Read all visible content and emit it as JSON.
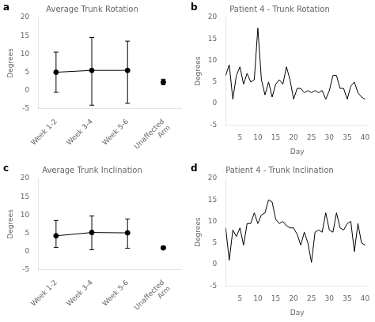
{
  "chart_data": [
    {
      "type": "errorbar",
      "title": "Average Trunk Rotation",
      "annotations": [
        "a"
      ],
      "categories": [
        "Week 1-2",
        "Week 3-4",
        "Week 5-6",
        "Unaffected\nArm"
      ],
      "series": [
        {
          "type": "line",
          "line_style": "solid",
          "color": "#000000",
          "values": [
            5.0,
            5.5,
            5.5,
            null
          ]
        },
        {
          "type": "scatter",
          "marker": "circle",
          "color": "#000000",
          "values": [
            5.0,
            5.5,
            5.5,
            2.3
          ],
          "errors_upper": [
            5.5,
            9.0,
            8.0,
            0.8
          ],
          "errors_lower": [
            5.5,
            9.5,
            9.0,
            0.7
          ]
        }
      ],
      "ylabel": "Degrees",
      "ylim": [
        -5,
        20
      ],
      "yticks": [
        -5,
        0,
        5,
        10,
        15,
        20
      ],
      "grid": false
    },
    {
      "type": "line",
      "title": "Patient 4 - Trunk Rotation",
      "annotations": [
        "b"
      ],
      "x": [
        1,
        2,
        3,
        4,
        5,
        6,
        7,
        8,
        9,
        10,
        11,
        12,
        13,
        14,
        15,
        16,
        17,
        18,
        19,
        20,
        21,
        22,
        23,
        24,
        25,
        26,
        27,
        28,
        29,
        30,
        31,
        32,
        33,
        34,
        35,
        36,
        37,
        38,
        39,
        40
      ],
      "series": [
        {
          "line_style": "solid",
          "color": "#000000",
          "values": [
            6.5,
            9.0,
            1.0,
            6.5,
            8.5,
            4.5,
            7.0,
            5.0,
            5.5,
            17.5,
            5.5,
            2.0,
            5.0,
            1.5,
            4.5,
            5.5,
            4.5,
            8.5,
            5.5,
            1.0,
            3.5,
            3.5,
            2.5,
            3.0,
            2.5,
            3.0,
            2.5,
            3.0,
            1.0,
            3.0,
            6.5,
            6.5,
            3.5,
            3.5,
            1.0,
            4.0,
            5.0,
            2.5,
            1.5,
            1.0
          ]
        }
      ],
      "xlabel": "Day",
      "ylabel": "Degrees",
      "xlim": [
        1,
        41
      ],
      "xticks": [
        5,
        10,
        15,
        20,
        25,
        30,
        35,
        40
      ],
      "ylim": [
        -5,
        20
      ],
      "yticks": [
        -5,
        0,
        5,
        10,
        15,
        20
      ],
      "grid": false
    },
    {
      "type": "errorbar",
      "title": "Average Trunk Inclination",
      "annotations": [
        "c"
      ],
      "categories": [
        "Week 1-2",
        "Week 3-4",
        "Week 5-6",
        "Unaffected\nArm"
      ],
      "series": [
        {
          "type": "line",
          "line_style": "solid",
          "color": "#000000",
          "values": [
            4.3,
            5.2,
            5.1,
            null
          ]
        },
        {
          "type": "scatter",
          "marker": "circle",
          "color": "#000000",
          "values": [
            4.3,
            5.2,
            5.1,
            1.0
          ],
          "errors_upper": [
            4.2,
            4.5,
            3.8,
            0.3
          ],
          "errors_lower": [
            3.2,
            4.7,
            4.2,
            0.3
          ]
        }
      ],
      "ylabel": "Degrees",
      "ylim": [
        -5,
        20
      ],
      "yticks": [
        -5,
        0,
        5,
        10,
        15,
        20
      ],
      "grid": false
    },
    {
      "type": "line",
      "title": "Patient 4 - Trunk Inclination",
      "annotations": [
        "d"
      ],
      "x": [
        1,
        2,
        3,
        4,
        5,
        6,
        7,
        8,
        9,
        10,
        11,
        12,
        13,
        14,
        15,
        16,
        17,
        18,
        19,
        20,
        21,
        22,
        23,
        24,
        25,
        26,
        27,
        28,
        29,
        30,
        31,
        32,
        33,
        34,
        35,
        36,
        37,
        38,
        39,
        40
      ],
      "series": [
        {
          "line_style": "solid",
          "color": "#000000",
          "values": [
            8.5,
            1.0,
            8.0,
            6.5,
            8.5,
            4.5,
            9.5,
            9.5,
            12.0,
            9.5,
            11.5,
            12.0,
            15.0,
            14.5,
            10.5,
            9.5,
            10.0,
            9.0,
            8.5,
            8.5,
            7.0,
            4.5,
            7.5,
            5.0,
            0.5,
            7.5,
            8.0,
            7.5,
            12.0,
            8.0,
            7.5,
            12.0,
            8.5,
            8.0,
            9.5,
            10.0,
            3.0,
            9.5,
            5.0,
            4.5
          ]
        }
      ],
      "xlabel": "Day",
      "ylabel": "Degrees",
      "xlim": [
        1,
        41
      ],
      "xticks": [
        5,
        10,
        15,
        20,
        25,
        30,
        35,
        40
      ],
      "ylim": [
        -5,
        20
      ],
      "yticks": [
        -5,
        0,
        5,
        10,
        15,
        20
      ],
      "grid": false
    }
  ]
}
